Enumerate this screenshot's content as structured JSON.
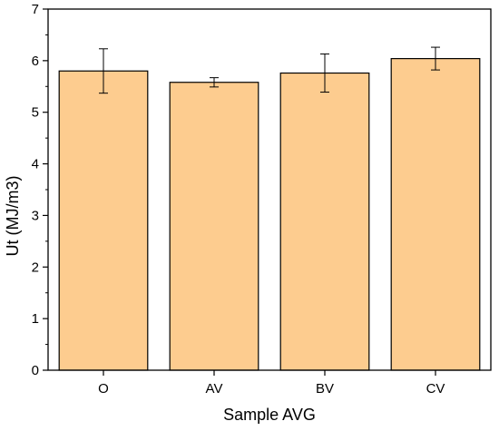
{
  "chart_data": {
    "type": "bar",
    "title": "",
    "xlabel": "Sample AVG",
    "ylabel": "Ut (MJ/m3)",
    "categories": [
      "O",
      "AV",
      "BV",
      "CV"
    ],
    "values": [
      5.8,
      5.58,
      5.76,
      6.04
    ],
    "error": [
      0.43,
      0.09,
      0.37,
      0.22
    ],
    "ylim": [
      0,
      7
    ],
    "yticks": [
      0,
      1,
      2,
      3,
      4,
      5,
      6,
      7
    ],
    "grid": false,
    "legend": "none",
    "colors": {
      "bar_fill": "#fdcc8f",
      "bar_stroke": "#000000",
      "axis": "#000000"
    }
  }
}
